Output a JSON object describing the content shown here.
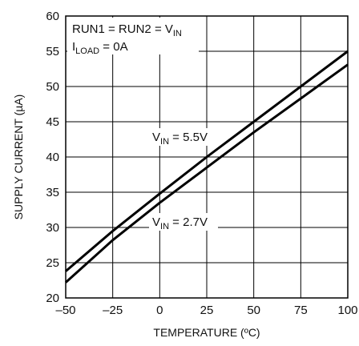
{
  "chart_data": {
    "type": "line",
    "title": "",
    "xlabel": "TEMPERATURE (ºC)",
    "ylabel": "SUPPLY CURRENT (µA)",
    "xlim": [
      -50,
      100
    ],
    "ylim": [
      20,
      60
    ],
    "x_ticks": [
      -50,
      -25,
      0,
      25,
      50,
      75,
      100
    ],
    "y_ticks": [
      20,
      25,
      30,
      35,
      40,
      45,
      50,
      55,
      60
    ],
    "x_tick_labels": [
      "–50",
      "–25",
      "0",
      "25",
      "50",
      "75",
      "100"
    ],
    "y_tick_labels": [
      "20",
      "25",
      "30",
      "35",
      "40",
      "45",
      "50",
      "55",
      "60"
    ],
    "grid": true,
    "legend": "none",
    "series": [
      {
        "label_main": "V",
        "label_sub": "IN",
        "label_rest": " = 5.5V",
        "x": [
          -50,
          -25,
          0,
          25,
          50,
          75,
          100
        ],
        "y": [
          23.8,
          29.5,
          34.8,
          40.0,
          45.0,
          50.0,
          55.0
        ],
        "color": "#000000"
      },
      {
        "label_main": "V",
        "label_sub": "IN",
        "label_rest": " = 2.7V",
        "x": [
          -50,
          -25,
          0,
          25,
          50,
          75,
          100
        ],
        "y": [
          22.2,
          28.2,
          33.5,
          38.5,
          43.5,
          48.3,
          53.1
        ],
        "color": "#000000"
      }
    ],
    "annotations": {
      "box_line1": {
        "main": "RUN1 = RUN2 = V",
        "sub": "IN"
      },
      "box_line2": {
        "main": "I",
        "sub": "LOAD",
        "rest": " = 0A"
      }
    }
  }
}
